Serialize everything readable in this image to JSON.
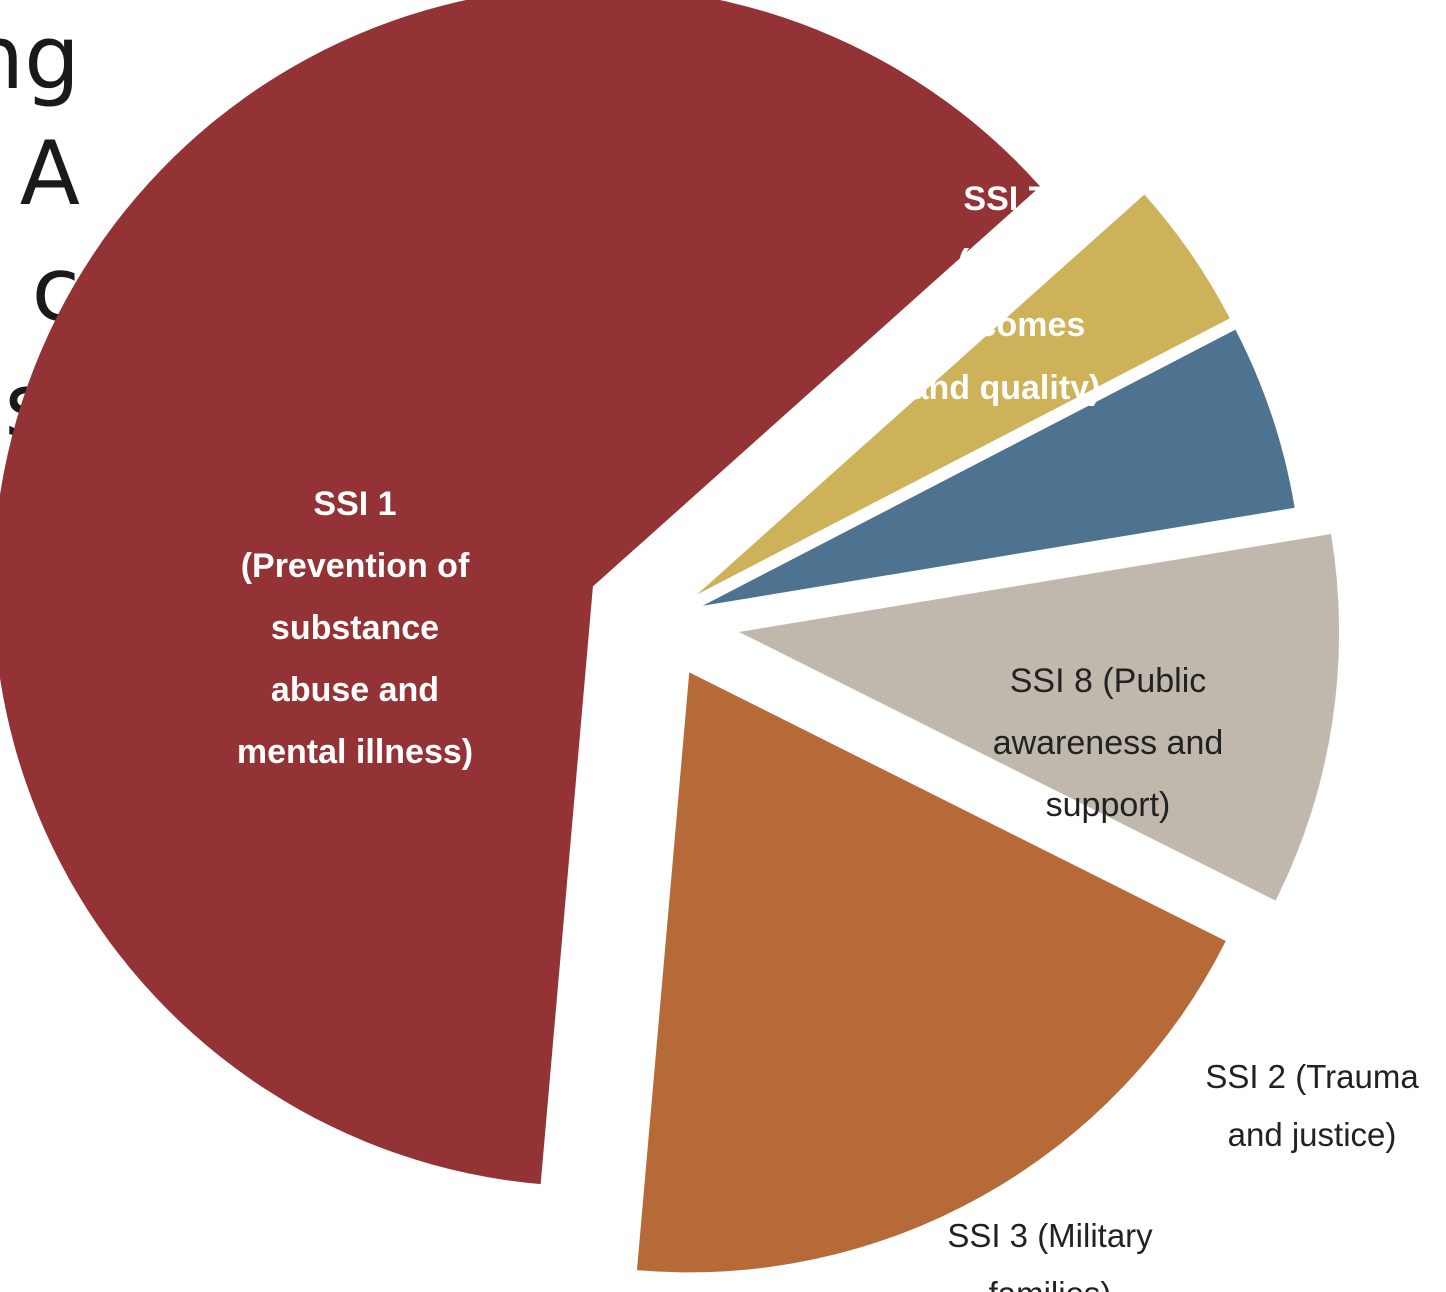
{
  "background_text_fragments": [
    "ng",
    "A",
    "c",
    "s:"
  ],
  "chart_data": {
    "type": "pie",
    "exploded": true,
    "slices": [
      {
        "id": "ssi1",
        "label_lines": [
          "SSI 1",
          "(Prevention of",
          "substance",
          "abuse and",
          "mental illness)"
        ],
        "value": 62,
        "color": "#943335",
        "label_inside": true,
        "label_color": "#ffffff",
        "bold": true
      },
      {
        "id": "ssi3",
        "label_lines": [
          "SSI 3 (Military",
          "families)"
        ],
        "value": 4,
        "color": "#cdb25a",
        "label_inside": false,
        "label_color": "#222222",
        "bold": false
      },
      {
        "id": "ssi2",
        "label_lines": [
          "SSI 2 (Trauma",
          "and justice)"
        ],
        "value": 5,
        "color": "#4e7391",
        "label_inside": false,
        "label_color": "#222222",
        "bold": false
      },
      {
        "id": "ssi8",
        "label_lines": [
          "SSI 8 (Public",
          "awareness and",
          "support)"
        ],
        "value": 10,
        "color": "#c0b8ad",
        "label_inside": true,
        "label_color": "#222222",
        "bold": false
      },
      {
        "id": "ssi7",
        "label_lines": [
          "SSI 7",
          "(Data,",
          "outcomes",
          "and quality)"
        ],
        "value": 19,
        "color": "#b56a37",
        "label_inside": true,
        "label_color": "#ffffff",
        "bold": true
      }
    ]
  }
}
